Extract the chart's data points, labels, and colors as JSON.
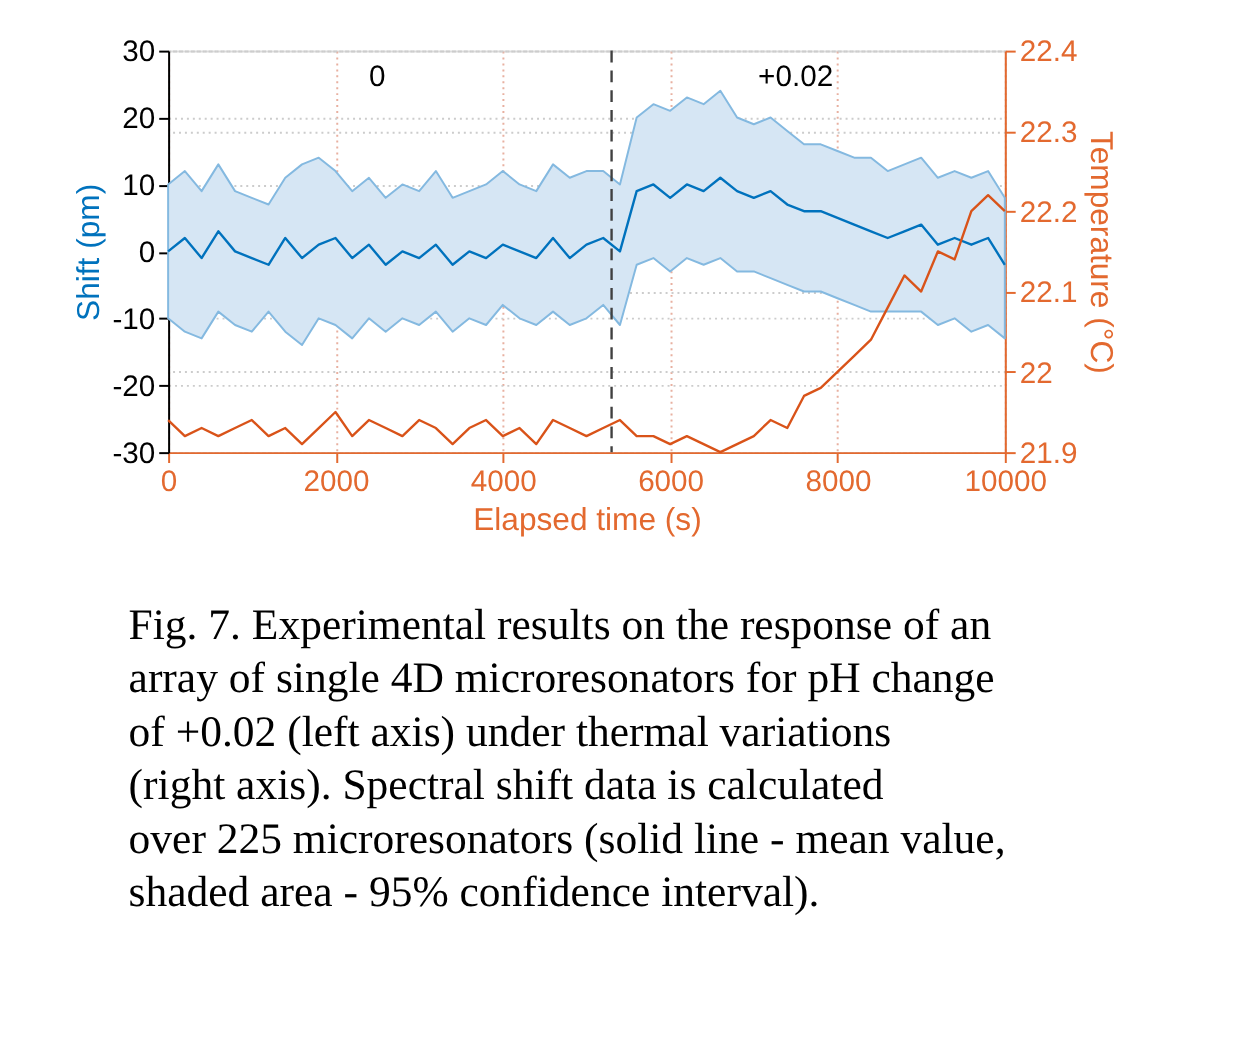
{
  "chart_data": {
    "type": "line",
    "xlabel": "Elapsed time (s)",
    "ylabel": "Shift (pm)",
    "y2label": "Temperature (°C)",
    "x": [
      0,
      200,
      400,
      600,
      800,
      1000,
      1200,
      1400,
      1600,
      1800,
      2000,
      2200,
      2400,
      2600,
      2800,
      3000,
      3200,
      3400,
      3600,
      3800,
      4000,
      4200,
      4400,
      4600,
      4800,
      5000,
      5200,
      5400,
      5600,
      5800,
      6000,
      6200,
      6400,
      6600,
      6800,
      7000,
      7200,
      7400,
      7600,
      7800,
      8000,
      8200,
      8400,
      8600,
      8800,
      9000,
      9200,
      9400,
      9600,
      9800,
      10000
    ],
    "series": [
      {
        "color": "#0072bd",
        "values": [
          0,
          2,
          -1,
          3,
          0,
          -1,
          -2,
          2,
          -1,
          1,
          2,
          -1,
          1,
          -2,
          0,
          -1,
          1,
          -2,
          0,
          -1,
          1,
          0,
          -1,
          2,
          -1,
          1,
          2,
          0,
          9,
          10,
          8,
          10,
          9,
          11,
          9,
          8,
          9,
          7,
          6,
          6,
          5,
          4,
          3,
          2,
          3,
          4,
          1,
          2,
          1,
          2,
          -2
        ],
        "upper": [
          10,
          12,
          9,
          13,
          9,
          8,
          7,
          11,
          13,
          14,
          12,
          9,
          11,
          8,
          10,
          9,
          12,
          8,
          9,
          10,
          12,
          10,
          9,
          13,
          11,
          12,
          12,
          10,
          20,
          22,
          21,
          23,
          22,
          24,
          20,
          19,
          20,
          18,
          16,
          16,
          15,
          14,
          14,
          12,
          13,
          14,
          11,
          12,
          11,
          12,
          8
        ],
        "lower": [
          -10,
          -12,
          -13,
          -9,
          -11,
          -12,
          -9,
          -12,
          -14,
          -10,
          -11,
          -13,
          -10,
          -12,
          -10,
          -11,
          -9,
          -12,
          -10,
          -11,
          -8,
          -10,
          -11,
          -9,
          -11,
          -10,
          -8,
          -11,
          -2,
          -1,
          -3,
          -1,
          -2,
          -1,
          -3,
          -3,
          -4,
          -5,
          -6,
          -6,
          -7,
          -8,
          -9,
          -9,
          -9,
          -9,
          -11,
          -10,
          -12,
          -11,
          -13
        ]
      },
      {
        "color": "#d95319",
        "axis": "y2",
        "values": [
          21.94,
          21.92,
          21.93,
          21.92,
          21.93,
          21.94,
          21.92,
          21.93,
          21.91,
          21.93,
          21.95,
          21.92,
          21.94,
          21.93,
          21.92,
          21.94,
          21.93,
          21.91,
          21.93,
          21.94,
          21.92,
          21.93,
          21.91,
          21.94,
          21.93,
          21.92,
          21.93,
          21.94,
          21.92,
          21.92,
          21.91,
          21.92,
          21.91,
          21.9,
          21.91,
          21.92,
          21.94,
          21.93,
          21.97,
          21.98,
          22.0,
          22.02,
          22.04,
          22.08,
          22.12,
          22.1,
          22.15,
          22.14,
          22.2,
          22.22,
          22.2
        ]
      }
    ],
    "xlim": [
      0,
      10000
    ],
    "xticks": [
      0,
      2000,
      4000,
      6000,
      8000,
      10000
    ],
    "ylim": [
      -30,
      30
    ],
    "yticks": [
      -30,
      -20,
      -10,
      0,
      10,
      20,
      30
    ],
    "y2lim": [
      21.9,
      22.4
    ],
    "y2ticks": [
      21.9,
      22,
      22.1,
      22.2,
      22.3,
      22.4
    ],
    "ref_lines": [
      {
        "axis": "x",
        "value": 5300,
        "color": "#404040",
        "line_style": "dashed"
      }
    ],
    "annotations": [
      "0",
      "+0.02",
      "Fig. 7. Experimental results on the response of an array of single 4D microresonators for pH change of +0.02 (left axis) under thermal variations (right axis). Spectral shift data is calculated over 225 microresonators (solid line - mean value, shaded area - 95% confidence interval)."
    ],
    "grid": true,
    "line_style": "solid",
    "marker": "none"
  }
}
